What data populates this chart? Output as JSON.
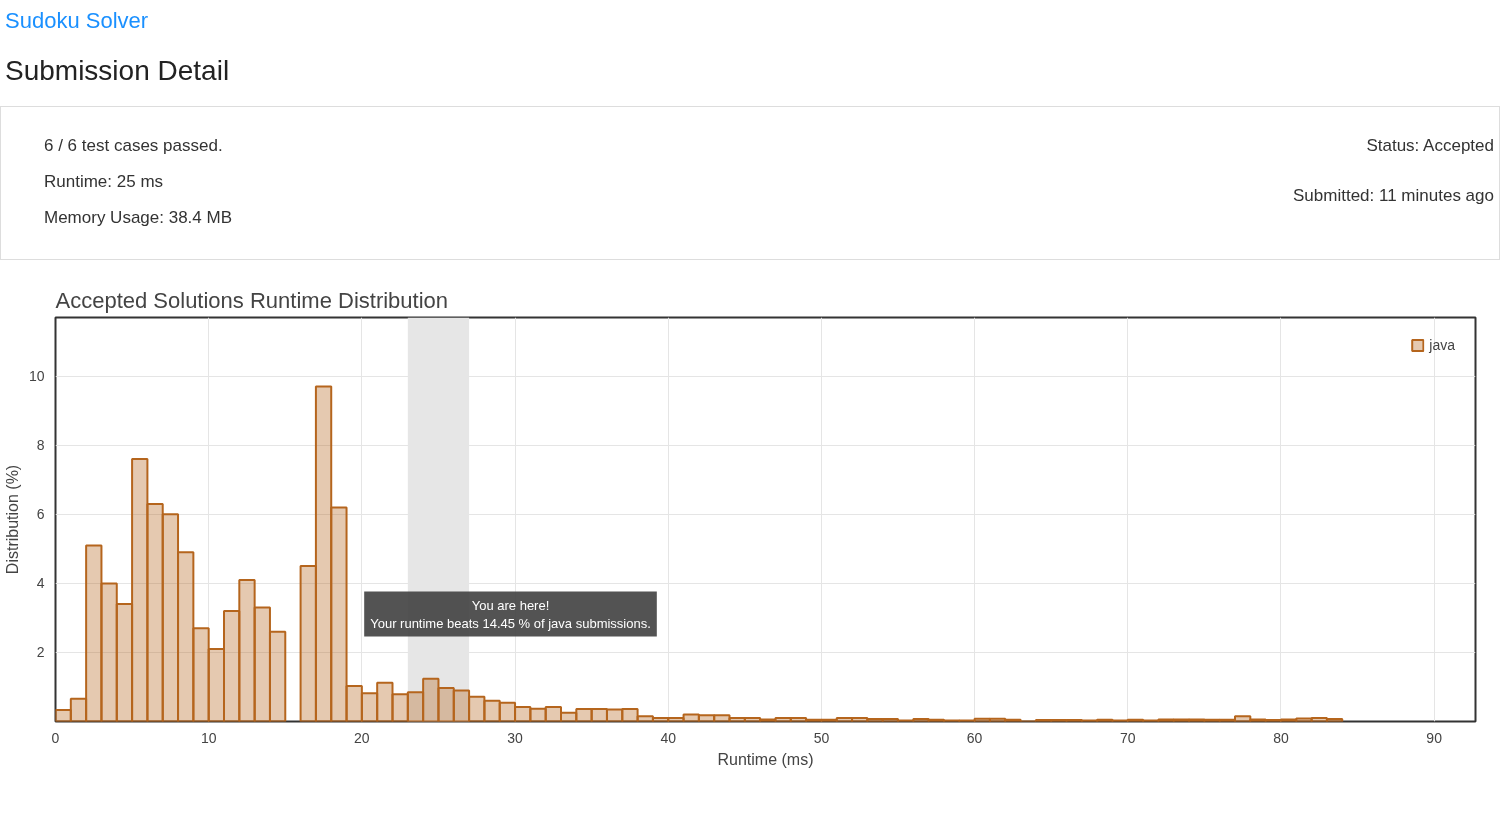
{
  "chart_data": {
    "type": "histogram",
    "title": "Accepted Solutions Runtime Distribution",
    "xlabel": "Runtime (ms)",
    "ylabel": "Distribution (%)",
    "annotations": [
      "Sudoku Solver",
      "Submission Detail",
      "6 / 6 test cases passed.",
      "Runtime: 25 ms",
      "Memory Usage: 38.4 MB",
      "Status: Accepted",
      "Submitted: 11 minutes ago",
      "You are here!\nYour runtime beats 14.45 % of java submissions."
    ],
    "bins": [
      0,
      1,
      2,
      3,
      4,
      5,
      6,
      7,
      8,
      9,
      10,
      11,
      12,
      13,
      14,
      15,
      16,
      17,
      18,
      19,
      20,
      21,
      22,
      23,
      24,
      25,
      26,
      27,
      28,
      29,
      30,
      31,
      32,
      33,
      34,
      35,
      36,
      37,
      38,
      39,
      40,
      41,
      42,
      43,
      44,
      45,
      46,
      47,
      48,
      49,
      50,
      51,
      52,
      53,
      54,
      55,
      56,
      57,
      58,
      59,
      60,
      61,
      62,
      63,
      64,
      65,
      66,
      67,
      68,
      69,
      70,
      71,
      72,
      73,
      74,
      75,
      76,
      77,
      78,
      79,
      80,
      81,
      82,
      83,
      84
    ],
    "series": [
      {
        "name": "java",
        "color": "#b5651d",
        "values": [
          0.33,
          0.66,
          5.1,
          4.0,
          3.4,
          7.6,
          6.3,
          6.0,
          4.9,
          2.7,
          2.1,
          3.2,
          4.1,
          3.3,
          2.6,
          null,
          4.5,
          9.7,
          6.2,
          1.03,
          0.82,
          1.12,
          0.79,
          0.85,
          1.24,
          0.97,
          0.9,
          0.72,
          0.6,
          0.54,
          0.42,
          0.37,
          0.42,
          0.25,
          0.36,
          0.36,
          0.35,
          0.36,
          0.15,
          0.1,
          0.1,
          0.2,
          0.18,
          0.18,
          0.1,
          0.1,
          0.06,
          0.1,
          0.1,
          0.05,
          0.05,
          0.1,
          0.1,
          0.07,
          0.07,
          0.03,
          0.07,
          0.05,
          0.03,
          0.03,
          0.08,
          0.08,
          0.05,
          0,
          0.04,
          0.04,
          0.04,
          0.03,
          0.05,
          0.03,
          0.05,
          0.03,
          0.06,
          0.06,
          0.06,
          0.05,
          0.05,
          0.15,
          0.06,
          0.04,
          0.06,
          0.09,
          0.1,
          0.07
        ]
      }
    ],
    "bands": [
      {
        "axis": "x",
        "from": 23,
        "to": 27,
        "color": "#e6e6e6"
      }
    ],
    "xlim": [
      0,
      92.7
    ],
    "xticks": [
      0,
      10,
      20,
      30,
      40,
      50,
      60,
      70,
      80,
      90
    ],
    "ylim": [
      0,
      11.7
    ],
    "yticks": [
      2,
      4,
      6,
      8,
      10
    ],
    "grid": true,
    "legend": "top right"
  }
}
